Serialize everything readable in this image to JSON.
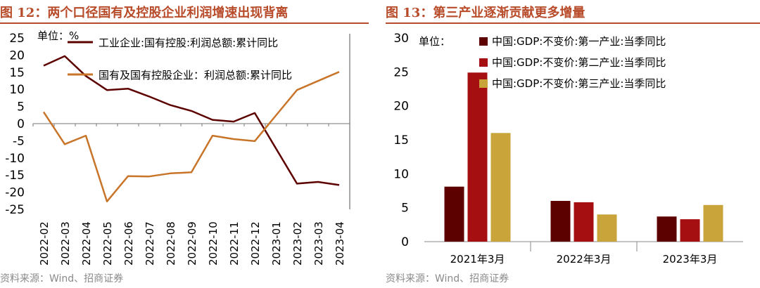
{
  "left": {
    "title": "图 12：两个口径国有及控股企业利润增速出现背离",
    "source": "资料来源：Wind、招商证券",
    "chart_data": {
      "type": "line",
      "unit_label": "单位：%",
      "x": [
        "2022-02",
        "2022-03",
        "2022-04",
        "2022-05",
        "2022-06",
        "2022-07",
        "2022-08",
        "2022-09",
        "2022-10",
        "2022-11",
        "2022-12",
        "2023-01",
        "2023-02",
        "2023-03",
        "2023-04"
      ],
      "ylim": [
        -25,
        25
      ],
      "yticks": [
        25,
        20,
        15,
        10,
        5,
        0,
        -5,
        -10,
        -15,
        -20,
        -25
      ],
      "series": [
        {
          "name": "工业企业:国有控股:利润总额:累计同比",
          "color": "#5c0000",
          "values": [
            16.9,
            19.7,
            13.9,
            9.8,
            10.2,
            7.9,
            5.4,
            3.7,
            1.1,
            0.6,
            3.1,
            null,
            -17.5,
            -17.0,
            -17.9
          ]
        },
        {
          "name": "国有及国有控股企业：利润总额:累计同比",
          "color": "#c8752a",
          "values": [
            3.4,
            -6.0,
            -3.5,
            -22.7,
            -15.3,
            -15.4,
            -14.5,
            -14.2,
            -3.5,
            -4.5,
            -5.1,
            null,
            9.8,
            null,
            15.1
          ]
        }
      ]
    }
  },
  "right": {
    "title": "图 13：第三产业逐渐贡献更多增量",
    "source": "资料来源：Wind、招商证券",
    "chart_data": {
      "type": "bar",
      "unit_label": "单位：",
      "categories": [
        "2021年3月",
        "2022年3月",
        "2023年3月"
      ],
      "ylim": [
        0,
        30
      ],
      "yticks": [
        0,
        5,
        10,
        15,
        20,
        25,
        30
      ],
      "series": [
        {
          "name": "中国:GDP:不变价:第一产业:当季同比",
          "color": "#5c0000",
          "values": [
            8.1,
            6.0,
            3.7
          ]
        },
        {
          "name": "中国:GDP:不变价:第二产业:当季同比",
          "color": "#a50f12",
          "values": [
            24.9,
            5.8,
            3.3
          ]
        },
        {
          "name": "中国:GDP:不变价:第三产业:当季同比",
          "color": "#c9a43a",
          "values": [
            16.0,
            4.0,
            5.4
          ]
        }
      ]
    }
  }
}
